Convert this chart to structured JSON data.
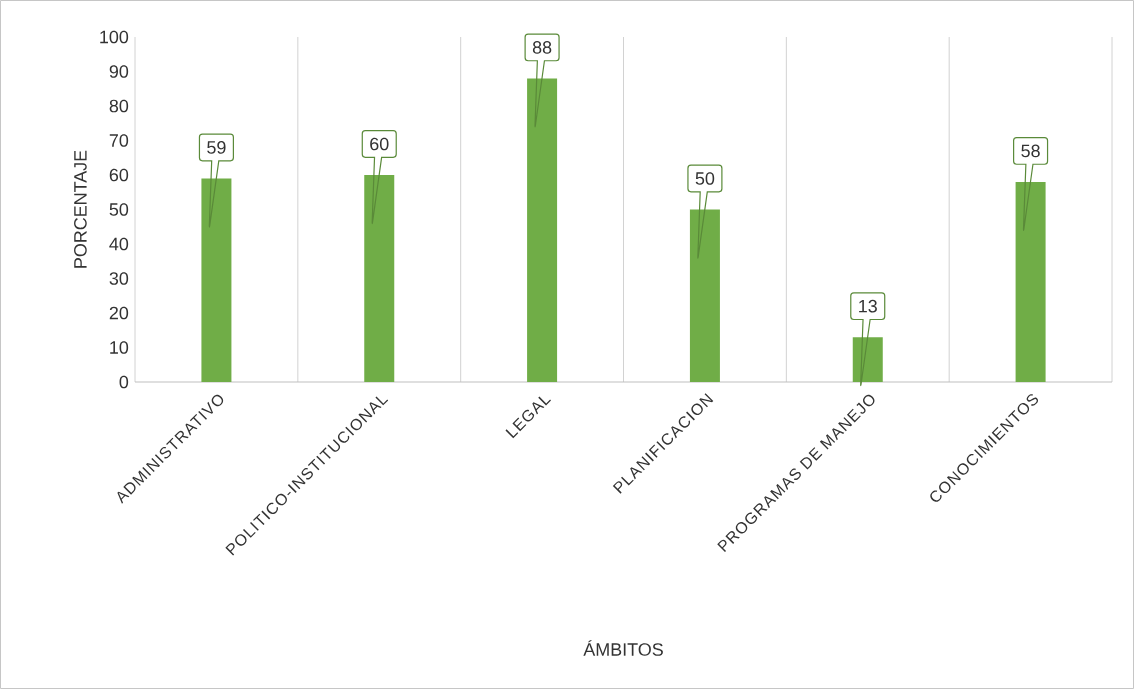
{
  "chart_data": {
    "type": "bar",
    "xlabel": "ÁMBITOS",
    "ylabel": "PORCENTAJE",
    "categories": [
      "ADMINISTRATIVO",
      "POLITICO-INSTITUCIONAL",
      "LEGAL",
      "PLANIFICACION",
      "PROGRAMAS DE MANEJO",
      "CONOCIMIENTOS"
    ],
    "values": [
      59,
      60,
      88,
      50,
      13,
      58
    ],
    "color": "#70ad47",
    "ylim": [
      0,
      100
    ],
    "yticks": [
      0,
      10,
      20,
      30,
      40,
      50,
      60,
      70,
      80,
      90,
      100
    ],
    "grid": "x",
    "data_labels": true
  }
}
